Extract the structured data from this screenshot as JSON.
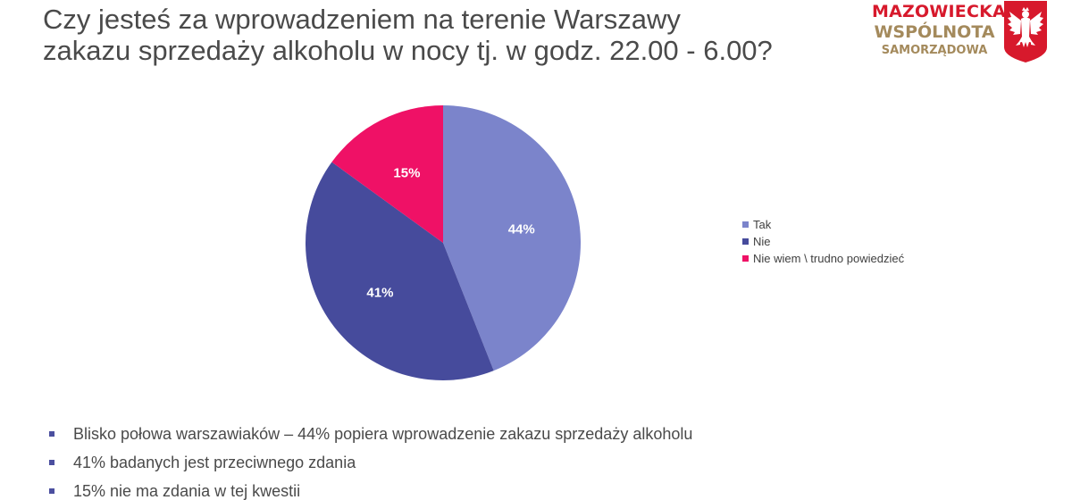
{
  "title": {
    "line1": "Czy jesteś za wprowadzeniem na terenie Warszawy",
    "line2": "zakazu sprzedaży alkoholu w nocy tj. w godz. 22.00 - 6.00?"
  },
  "logo": {
    "line1": "MAZOWIECKA",
    "line2": "WSPÓLNOTA",
    "line3": "SAMORZĄDOWA",
    "emblem_icon": "white-eagle-icon",
    "colors": {
      "red": "#d7192c",
      "gold": "#a48a5c"
    }
  },
  "chart_data": {
    "type": "pie",
    "categories": [
      "Tak",
      "Nie",
      "Nie wiem \\ trudno powiedzieć"
    ],
    "values": [
      44,
      41,
      15
    ],
    "data_labels": [
      "44%",
      "41%",
      "15%"
    ],
    "colors": [
      "#7b84cb",
      "#464b9c",
      "#ef1166"
    ],
    "legend_position": "right"
  },
  "bullets": [
    "Blisko połowa warszawiaków – 44% popiera wprowadzenie zakazu sprzedaży alkoholu",
    "41% badanych jest przeciwnego zdania",
    "15% nie ma zdania w tej kwestii"
  ]
}
